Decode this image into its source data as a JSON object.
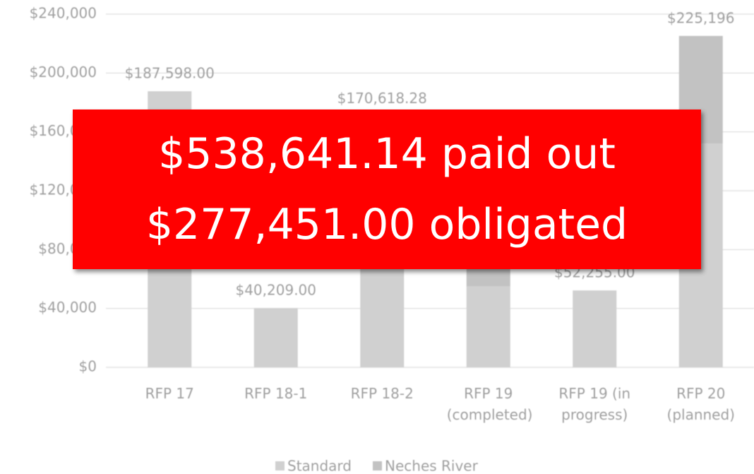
{
  "chart_data": {
    "type": "stacked_bar",
    "categories": [
      "RFP 17",
      "RFP 18-1",
      "RFP 18-2",
      "RFP 19 (completed)",
      "RFP 19 (in progress)",
      "RFP 20 (planned)"
    ],
    "series": [
      {
        "name": "Standard",
        "color": "#d0d0d0",
        "values": [
          187598,
          40209,
          170618.28,
          55000,
          52255,
          152000
        ]
      },
      {
        "name": "Neches River",
        "color": "#c2c2c2",
        "values": [
          0,
          0,
          0,
          30000,
          0,
          73196
        ]
      }
    ],
    "totals": [
      187598,
      40209,
      170618.28,
      null,
      52255,
      225196
    ],
    "total_labels": [
      "$187,598.00",
      "$40,209.00",
      "$170,618.28",
      null,
      "$52,255.00",
      "$225,196"
    ],
    "ylim": [
      0,
      240000
    ],
    "yticks": [
      {
        "value": 0,
        "label": "$0"
      },
      {
        "value": 40000,
        "label": "$40,000"
      },
      {
        "value": 80000,
        "label": "$80,000"
      },
      {
        "value": 120000,
        "label": "$120,000"
      },
      {
        "value": 160000,
        "label": "$160,000"
      },
      {
        "value": 200000,
        "label": "$200,000"
      },
      {
        "value": 240000,
        "label": "$240,000"
      }
    ],
    "grid": true,
    "legend": "bottom"
  },
  "overlay": [
    "$538,641.14 paid out",
    "$277,451.00 obligated"
  ]
}
